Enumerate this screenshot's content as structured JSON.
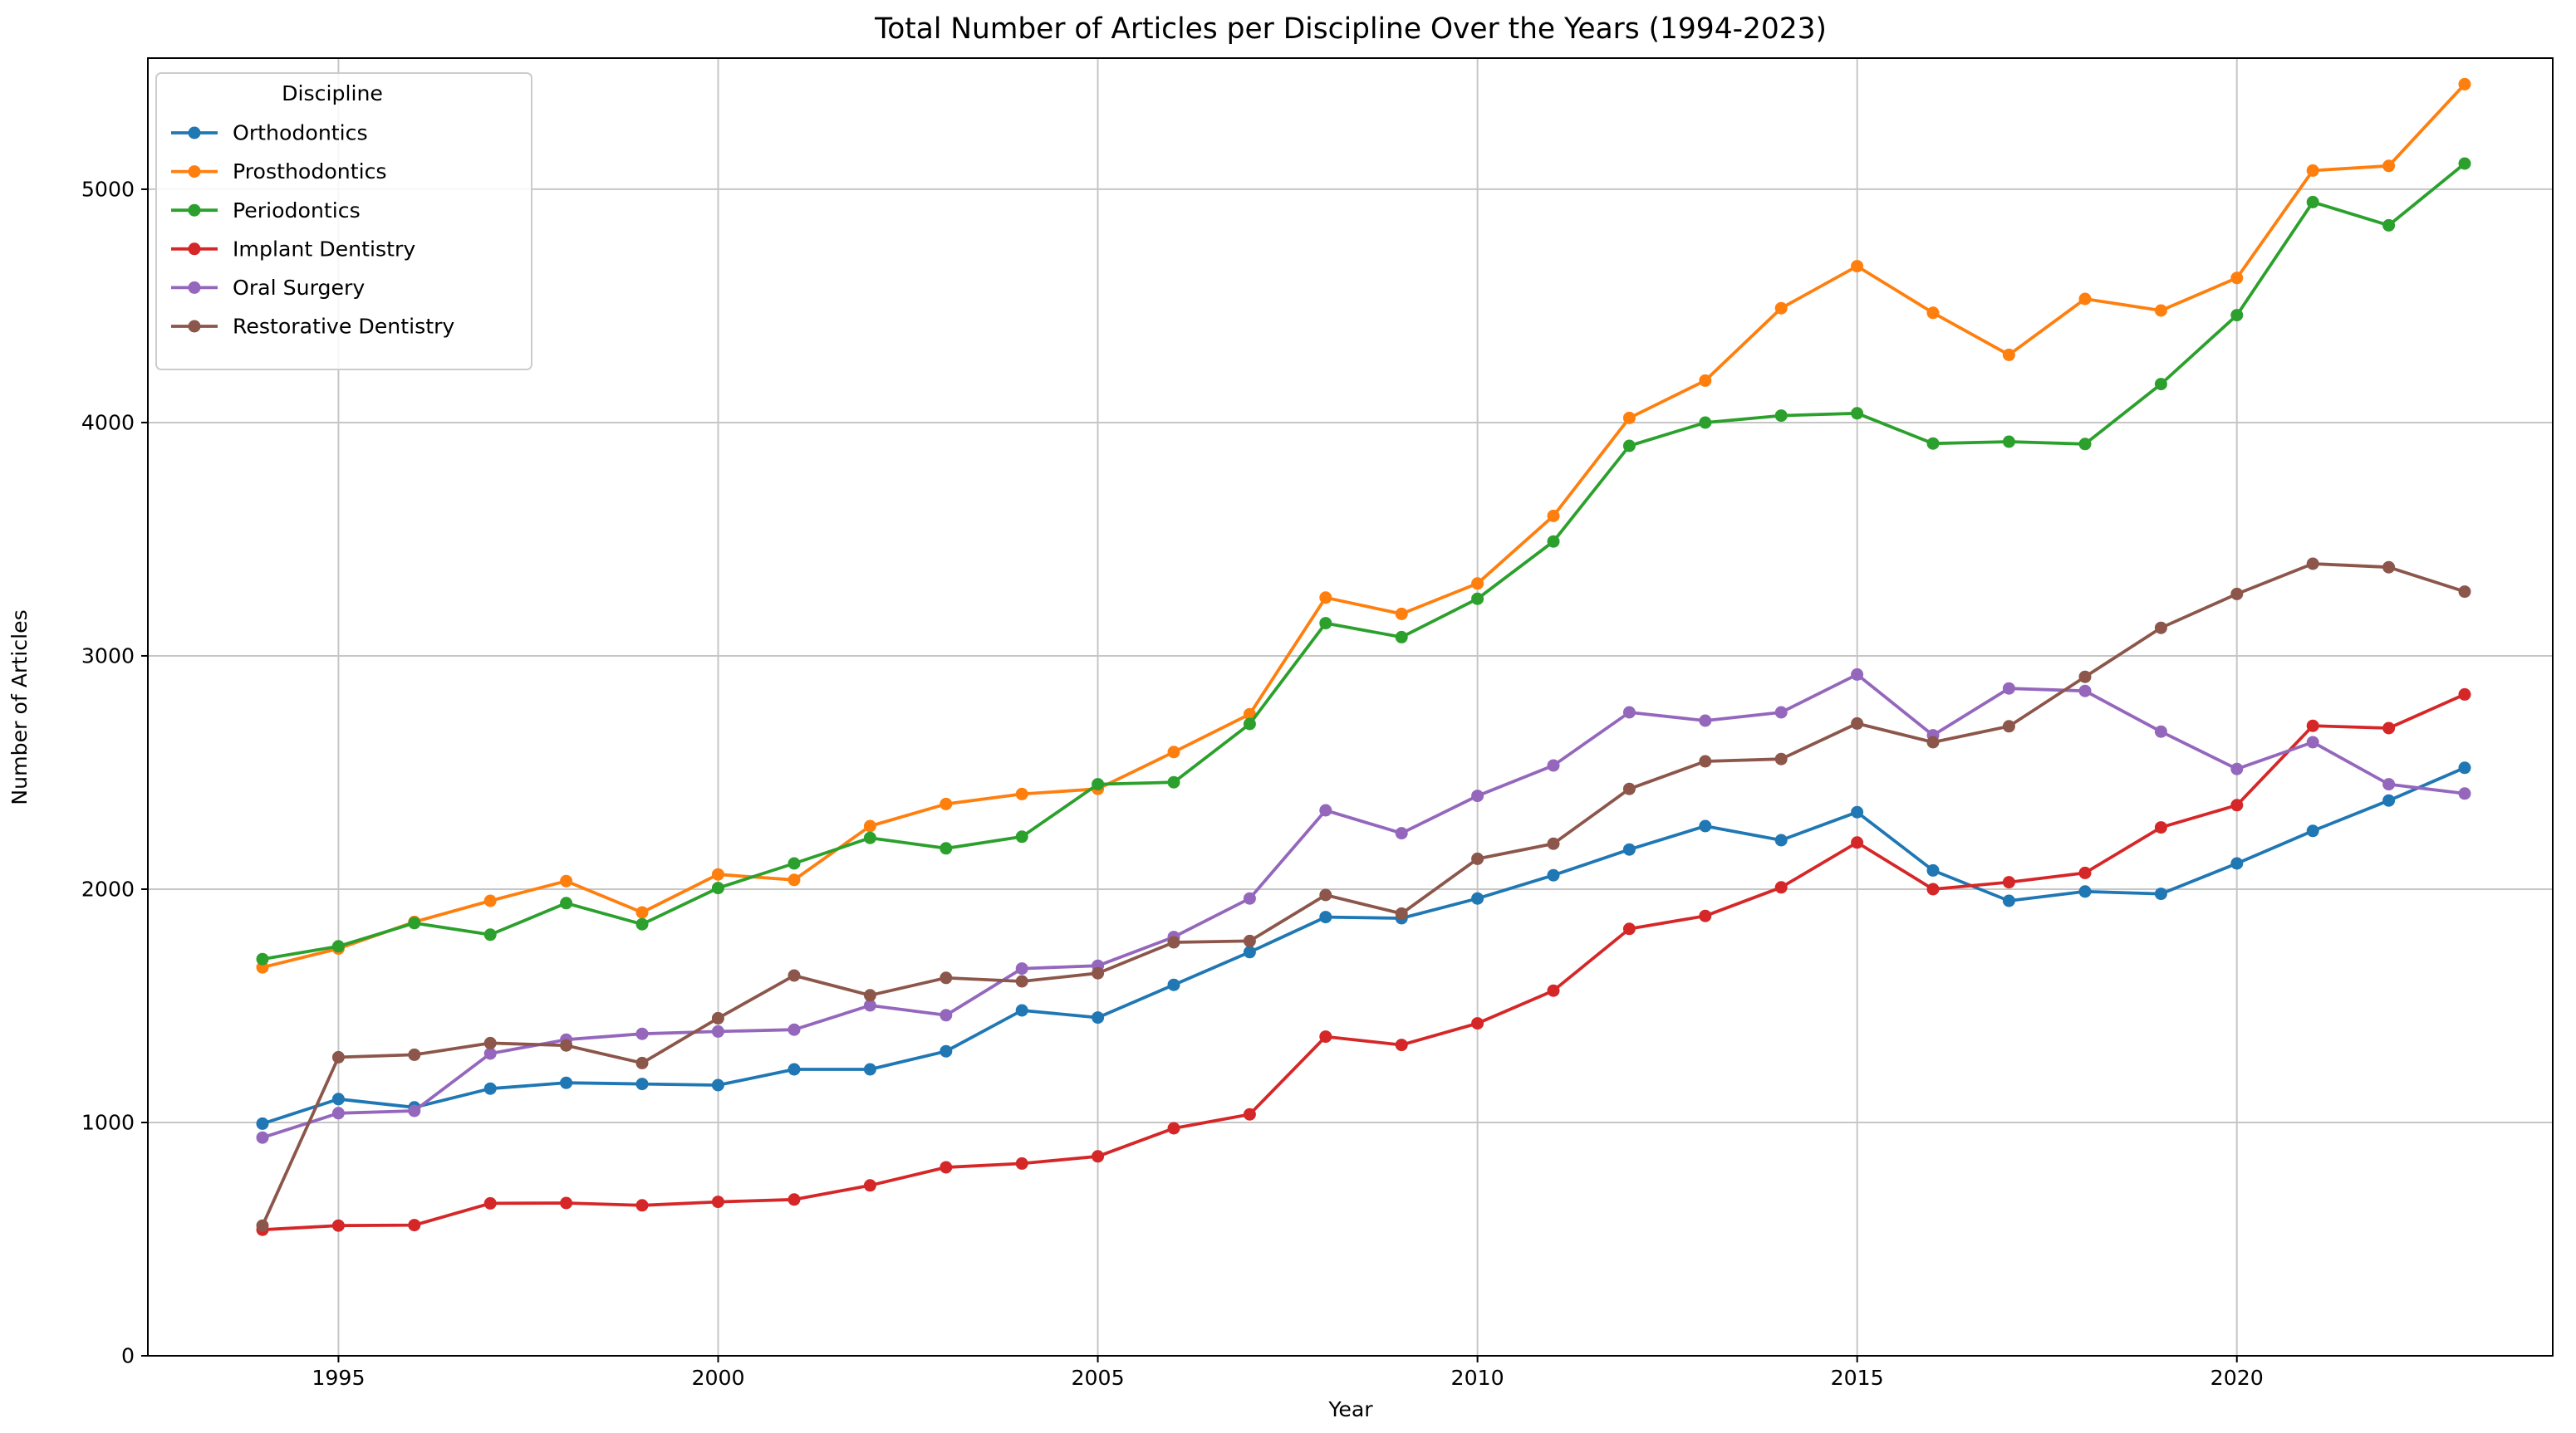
{
  "figure": {
    "title": "Total Number of Articles per Discipline Over the Years (1994-2023)",
    "xlabel": "Year",
    "ylabel": "Number of Articles"
  },
  "chart_data": {
    "type": "line",
    "title": "Total Number of Articles per Discipline Over the Years (1994-2023)",
    "xlabel": "Year",
    "ylabel": "Number of Articles",
    "grid": true,
    "legend": {
      "title": "Discipline",
      "position": "upper-left"
    },
    "x": [
      1994,
      1995,
      1996,
      1997,
      1998,
      1999,
      2000,
      2001,
      2002,
      2003,
      2004,
      2005,
      2006,
      2007,
      2008,
      2009,
      2010,
      2011,
      2012,
      2013,
      2014,
      2015,
      2016,
      2017,
      2018,
      2019,
      2020,
      2021,
      2022,
      2023
    ],
    "xticks": [
      1995,
      2000,
      2005,
      2010,
      2015,
      2020
    ],
    "yticks": [
      0,
      1000,
      2000,
      3000,
      4000,
      5000
    ],
    "xlim": [
      1992.49,
      2024.16
    ],
    "ylim": [
      0,
      5562
    ],
    "series": [
      {
        "name": "Orthodontics",
        "color": "#1f77b4",
        "values": [
          995,
          1100,
          1065,
          1145,
          1170,
          1165,
          1160,
          1228,
          1228,
          1305,
          1480,
          1450,
          1590,
          1730,
          1880,
          1875,
          1960,
          2060,
          2170,
          2270,
          2210,
          2330,
          2080,
          1950,
          1990,
          1980,
          2110,
          2250,
          2380,
          2520
        ]
      },
      {
        "name": "Prosthodontics",
        "color": "#ff7f0e",
        "values": [
          1665,
          1745,
          1860,
          1950,
          2035,
          1900,
          2063,
          2040,
          2270,
          2365,
          2408,
          2430,
          2588,
          2750,
          3250,
          3180,
          3310,
          3600,
          4020,
          4180,
          4490,
          4670,
          4470,
          4290,
          4530,
          4480,
          4620,
          5080,
          5100,
          5450
        ]
      },
      {
        "name": "Periodontics",
        "color": "#2ca02c",
        "values": [
          1700,
          1755,
          1855,
          1805,
          1940,
          1850,
          2005,
          2110,
          2220,
          2175,
          2225,
          2450,
          2458,
          2708,
          3140,
          3080,
          3245,
          3490,
          3900,
          4000,
          4030,
          4040,
          3910,
          3918,
          3908,
          4165,
          4460,
          4945,
          4845,
          5110
        ]
      },
      {
        "name": "Implant Dentistry",
        "color": "#d62728",
        "values": [
          540,
          558,
          560,
          653,
          655,
          645,
          660,
          670,
          730,
          808,
          824,
          855,
          975,
          1035,
          1368,
          1332,
          1425,
          1565,
          1830,
          1885,
          2008,
          2200,
          2000,
          2030,
          2070,
          2265,
          2360,
          2700,
          2690,
          2835
        ]
      },
      {
        "name": "Oral Surgery",
        "color": "#9467bd",
        "values": [
          935,
          1040,
          1050,
          1295,
          1355,
          1380,
          1390,
          1398,
          1502,
          1460,
          1660,
          1672,
          1795,
          1960,
          2338,
          2240,
          2400,
          2530,
          2758,
          2722,
          2758,
          2920,
          2660,
          2860,
          2850,
          2675,
          2515,
          2630,
          2450,
          2410
        ]
      },
      {
        "name": "Restorative Dentistry",
        "color": "#8c564b",
        "values": [
          558,
          1280,
          1290,
          1340,
          1330,
          1255,
          1447,
          1630,
          1545,
          1620,
          1605,
          1640,
          1772,
          1778,
          1975,
          1895,
          2130,
          2195,
          2430,
          2548,
          2558,
          2710,
          2630,
          2698,
          2910,
          3120,
          3265,
          3395,
          3380,
          3275
        ]
      }
    ],
    "colors": {
      "grid": "#c6c6c6",
      "spine": "#000000",
      "background": "#ffffff",
      "legend_border": "#cccccc"
    }
  }
}
